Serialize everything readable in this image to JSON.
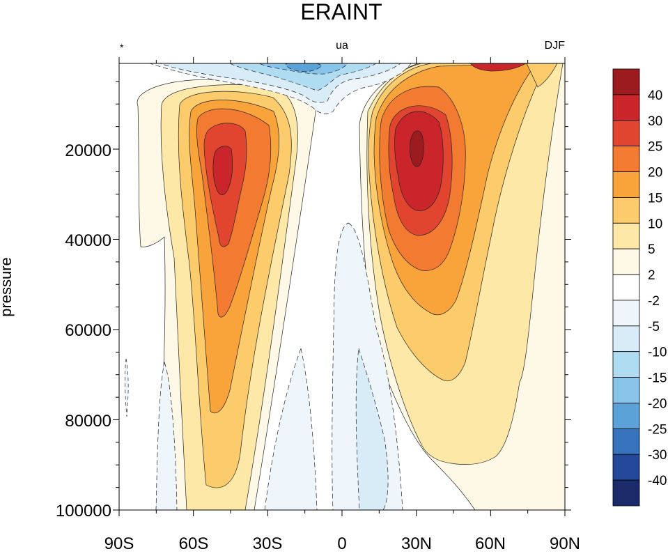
{
  "chart_data": {
    "type": "heatmap",
    "title": "ERAINT",
    "left_string": "*",
    "center_string": "ua",
    "right_string": "DJF",
    "ylabel": "pressure",
    "xlabel": "",
    "x_ticks": [
      "90S",
      "60S",
      "30S",
      "0",
      "30N",
      "60N",
      "90N"
    ],
    "x_tick_values": [
      -90,
      -60,
      -30,
      0,
      30,
      60,
      90
    ],
    "y_ticks": [
      "20000",
      "40000",
      "60000",
      "80000",
      "100000"
    ],
    "y_tick_values": [
      20000,
      40000,
      60000,
      80000,
      100000
    ],
    "xlim": [
      -90,
      90
    ],
    "ylim": [
      1000,
      100000
    ],
    "y_inverted": true,
    "colorbar": {
      "labels": [
        "40",
        "30",
        "25",
        "20",
        "15",
        "10",
        "5",
        "2",
        "-2",
        "-5",
        "-10",
        "-15",
        "-20",
        "-25",
        "-30",
        "-40"
      ],
      "colors": [
        "#9b1b1f",
        "#c9252b",
        "#e2452f",
        "#f37a31",
        "#f9a33b",
        "#fccb6c",
        "#fde8a8",
        "#fef8e6",
        "#ffffff",
        "#eef5fb",
        "#d7ecf7",
        "#b0dcf2",
        "#89c4ea",
        "#5aa2d7",
        "#3773bc",
        "#24479a",
        "#1b2a68"
      ]
    },
    "levels": [
      -40,
      -30,
      -25,
      -20,
      -15,
      -10,
      -5,
      -2,
      2,
      5,
      10,
      15,
      20,
      25,
      30,
      40
    ],
    "jets": [
      {
        "name": "",
        "lat": -48,
        "pressure": 22000,
        "max_u": 42
      },
      {
        "name": "",
        "lat": 30,
        "pressure": 20000,
        "max_u": 43
      }
    ],
    "easterlies": [
      {
        "lat": -15,
        "pressure": 1000,
        "min_u": -20
      },
      {
        "lat": 5,
        "pressure": 85000,
        "min_u": -5
      }
    ]
  }
}
